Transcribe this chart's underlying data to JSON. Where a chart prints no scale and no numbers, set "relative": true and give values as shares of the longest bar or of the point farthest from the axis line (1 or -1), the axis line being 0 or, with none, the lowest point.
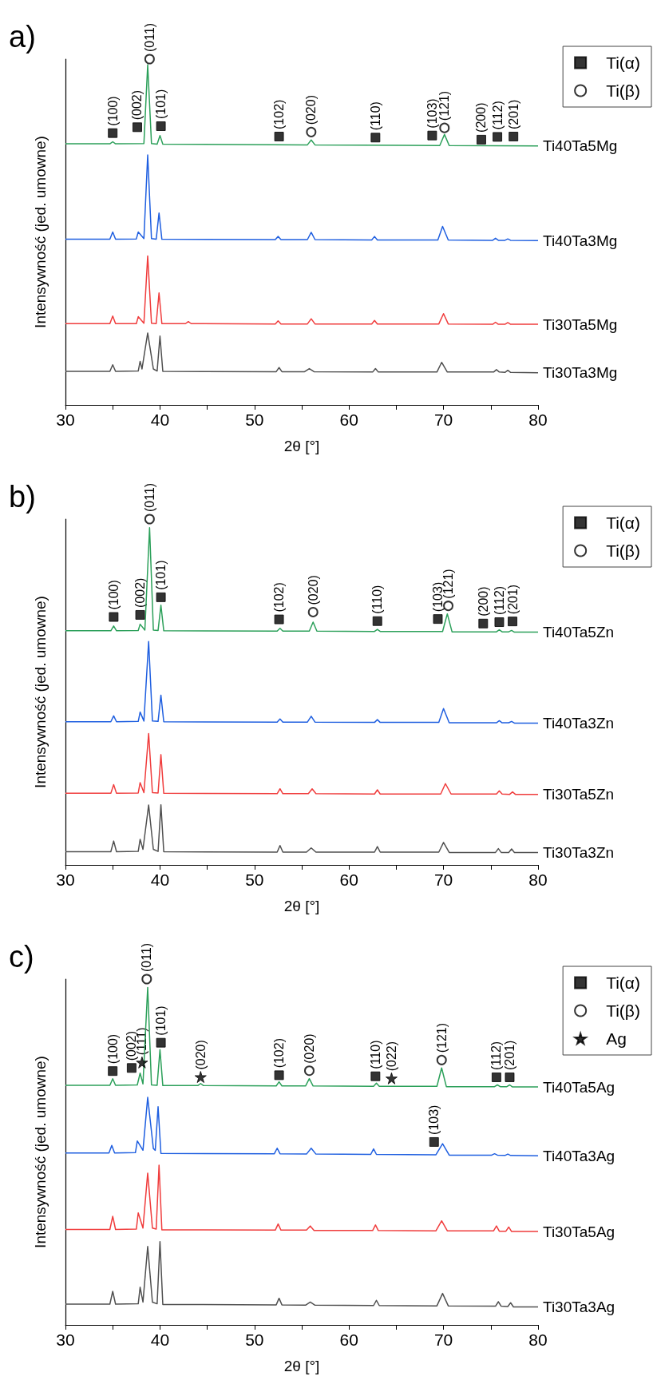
{
  "chart_data": [
    {
      "type": "line",
      "title": "a)",
      "xlabel": "2θ [°]",
      "ylabel": "Intensywność (jed. umowne)",
      "relative": true,
      "legend": "top right",
      "xlim": [
        30,
        80
      ],
      "xticks": [
        30,
        {
          "value": 35,
          "label": null
        },
        40,
        {
          "value": 45,
          "label": null
        },
        50,
        {
          "value": 55,
          "label": null
        },
        60,
        {
          "value": 65,
          "label": null
        },
        70,
        {
          "value": 75,
          "label": null
        },
        80
      ],
      "series": [
        {
          "name": "Ti40Ta5Mg",
          "color": "#2ca05a",
          "x": [
            30,
            34.7,
            35.0,
            35.3,
            38.3,
            38.7,
            39.1,
            39.7,
            40.0,
            40.3,
            55.6,
            56.0,
            56.4,
            69.6,
            70.1,
            70.6,
            80
          ],
          "values": [
            0.755,
            0.755,
            0.761,
            0.755,
            0.756,
            0.984,
            0.756,
            0.754,
            0.779,
            0.754,
            0.752,
            0.766,
            0.752,
            0.75,
            0.782,
            0.75,
            0.749
          ]
        },
        {
          "name": "Ti40Ta3Mg",
          "color": "#1f5fe0",
          "x": [
            30,
            34.7,
            35.0,
            35.3,
            37.5,
            37.7,
            38.3,
            38.7,
            39.1,
            39.6,
            39.9,
            40.2,
            52.2,
            52.5,
            52.8,
            55.6,
            56.0,
            56.4,
            62.4,
            62.7,
            63.0,
            69.4,
            69.9,
            70.5,
            75.2,
            75.5,
            75.8,
            76.5,
            76.8,
            77.1,
            80
          ],
          "values": [
            0.479,
            0.479,
            0.5,
            0.479,
            0.48,
            0.5,
            0.481,
            0.723,
            0.481,
            0.479,
            0.555,
            0.479,
            0.478,
            0.487,
            0.478,
            0.478,
            0.499,
            0.478,
            0.477,
            0.487,
            0.477,
            0.477,
            0.516,
            0.477,
            0.476,
            0.482,
            0.476,
            0.476,
            0.48,
            0.476,
            0.475
          ]
        },
        {
          "name": "Ti30Ta5Mg",
          "color": "#f03c3c",
          "x": [
            30,
            34.7,
            35.0,
            35.3,
            37.5,
            37.7,
            38.3,
            38.7,
            39.1,
            39.6,
            39.9,
            40.2,
            42.7,
            43.0,
            43.3,
            52.2,
            52.5,
            52.8,
            55.6,
            56.0,
            56.4,
            62.4,
            62.7,
            63.0,
            69.5,
            70.0,
            70.5,
            75.2,
            75.5,
            75.8,
            76.5,
            76.8,
            77.1,
            80
          ],
          "values": [
            0.235,
            0.235,
            0.257,
            0.235,
            0.235,
            0.255,
            0.236,
            0.431,
            0.236,
            0.235,
            0.324,
            0.235,
            0.235,
            0.241,
            0.235,
            0.234,
            0.243,
            0.234,
            0.234,
            0.249,
            0.234,
            0.234,
            0.244,
            0.234,
            0.234,
            0.264,
            0.234,
            0.233,
            0.239,
            0.233,
            0.233,
            0.238,
            0.233,
            0.233
          ]
        },
        {
          "name": "Ti30Ta3Mg",
          "color": "#505050",
          "x": [
            30,
            34.7,
            35.0,
            35.3,
            37.7,
            37.9,
            38.1,
            38.7,
            39.3,
            39.7,
            40.0,
            40.3,
            52.3,
            52.6,
            52.9,
            55.3,
            55.8,
            56.3,
            62.5,
            62.8,
            63.1,
            69.3,
            69.8,
            70.4,
            75.3,
            75.6,
            75.9,
            76.5,
            76.8,
            77.1,
            80
          ],
          "values": [
            0.097,
            0.097,
            0.116,
            0.097,
            0.098,
            0.126,
            0.104,
            0.208,
            0.104,
            0.098,
            0.199,
            0.097,
            0.096,
            0.108,
            0.096,
            0.096,
            0.105,
            0.096,
            0.095,
            0.105,
            0.095,
            0.095,
            0.123,
            0.095,
            0.095,
            0.102,
            0.095,
            0.094,
            0.1,
            0.094,
            0.093
          ]
        },
        {
          "name": "Ti(α)",
          "type": "scatter",
          "marker": "square",
          "color": "#000000",
          "x": [
            35.0,
            37.6,
            40.1,
            52.6,
            62.8,
            68.8,
            74.0,
            75.7,
            77.4
          ],
          "values": [
            0.786,
            0.803,
            0.806,
            0.776,
            0.773,
            0.779,
            0.767,
            0.775,
            0.776
          ]
        },
        {
          "name": "Ti(β)",
          "type": "scatter",
          "marker": "circle",
          "color": "#000000",
          "x": [
            38.9,
            56.0,
            70.1
          ],
          "values": [
            1.0,
            0.789,
            0.801
          ]
        }
      ],
      "annotations": [
        {
          "text": "(100)",
          "x": 35.0,
          "y": 0.786
        },
        {
          "text": "(002)",
          "x": 37.6,
          "y": 0.803
        },
        {
          "text": "(101)",
          "x": 40.1,
          "y": 0.806
        },
        {
          "text": "(011)",
          "x": 38.9,
          "y": 1.0
        },
        {
          "text": "(102)",
          "x": 52.6,
          "y": 0.776
        },
        {
          "text": "(020)",
          "x": 56.0,
          "y": 0.789
        },
        {
          "text": "(110)",
          "x": 62.8,
          "y": 0.773
        },
        {
          "text": "(103)",
          "x": 68.8,
          "y": 0.779
        },
        {
          "text": "(121)",
          "x": 70.1,
          "y": 0.801
        },
        {
          "text": "(200)",
          "x": 74.0,
          "y": 0.767
        },
        {
          "text": "(112)",
          "x": 75.7,
          "y": 0.775
        },
        {
          "text": "(201)",
          "x": 77.4,
          "y": 0.776
        }
      ]
    },
    {
      "type": "line",
      "title": "b)",
      "xlabel": "2θ [°]",
      "ylabel": "Intensywność (jed. umowne)",
      "relative": true,
      "legend": "top right",
      "xlim": [
        30,
        80
      ],
      "xticks": [
        30,
        {
          "value": 35,
          "label": null
        },
        40,
        {
          "value": 45,
          "label": null
        },
        50,
        {
          "value": 55,
          "label": null
        },
        60,
        {
          "value": 65,
          "label": null
        },
        70,
        {
          "value": 75,
          "label": null
        },
        80
      ],
      "series": [
        {
          "name": "Ti40Ta5Zn",
          "color": "#2ca05a",
          "x": [
            30,
            34.8,
            35.1,
            35.4,
            37.7,
            37.9,
            38.4,
            38.9,
            39.3,
            39.8,
            40.1,
            40.4,
            52.4,
            52.7,
            53.0,
            55.8,
            56.2,
            56.6,
            62.7,
            63.0,
            63.3,
            69.9,
            70.4,
            70.9,
            75.6,
            75.9,
            76.2,
            76.9,
            77.2,
            77.5,
            80
          ],
          "values": [
            0.677,
            0.677,
            0.691,
            0.677,
            0.678,
            0.696,
            0.679,
            0.975,
            0.679,
            0.678,
            0.751,
            0.677,
            0.676,
            0.684,
            0.676,
            0.676,
            0.702,
            0.676,
            0.675,
            0.681,
            0.675,
            0.675,
            0.726,
            0.674,
            0.674,
            0.68,
            0.674,
            0.674,
            0.678,
            0.673,
            0.673
          ]
        },
        {
          "name": "Ti40Ta3Zn",
          "color": "#1f5fe0",
          "x": [
            30,
            34.8,
            35.1,
            35.4,
            37.7,
            37.9,
            38.3,
            38.8,
            39.2,
            39.8,
            40.1,
            40.4,
            52.4,
            52.7,
            53.0,
            55.6,
            56.0,
            56.4,
            62.7,
            63.0,
            63.3,
            69.5,
            70.0,
            70.6,
            75.6,
            75.9,
            76.2,
            76.9,
            77.2,
            77.5,
            80
          ],
          "values": [
            0.414,
            0.414,
            0.431,
            0.414,
            0.415,
            0.442,
            0.416,
            0.646,
            0.416,
            0.415,
            0.491,
            0.414,
            0.413,
            0.422,
            0.413,
            0.413,
            0.43,
            0.413,
            0.412,
            0.42,
            0.412,
            0.412,
            0.452,
            0.411,
            0.411,
            0.417,
            0.411,
            0.411,
            0.415,
            0.41,
            0.41
          ]
        },
        {
          "name": "Ti30Ta5Zn",
          "color": "#f03c3c",
          "x": [
            30,
            34.8,
            35.1,
            35.4,
            37.7,
            37.9,
            38.3,
            38.8,
            39.2,
            39.8,
            40.1,
            40.4,
            52.4,
            52.7,
            53.0,
            55.7,
            56.1,
            56.5,
            62.7,
            63.0,
            63.3,
            69.7,
            70.2,
            70.8,
            75.6,
            75.9,
            76.2,
            77.0,
            77.3,
            77.6,
            80
          ],
          "values": [
            0.207,
            0.207,
            0.232,
            0.207,
            0.208,
            0.238,
            0.209,
            0.38,
            0.209,
            0.208,
            0.319,
            0.207,
            0.206,
            0.22,
            0.206,
            0.206,
            0.22,
            0.206,
            0.205,
            0.217,
            0.205,
            0.205,
            0.235,
            0.205,
            0.205,
            0.214,
            0.205,
            0.204,
            0.211,
            0.204,
            0.204
          ]
        },
        {
          "name": "Ti30Ta3Zn",
          "color": "#505050",
          "x": [
            30,
            34.8,
            35.1,
            35.4,
            37.7,
            37.9,
            38.2,
            38.8,
            39.3,
            39.8,
            40.1,
            40.4,
            52.4,
            52.7,
            53.0,
            55.5,
            56.0,
            56.5,
            62.7,
            63.0,
            63.3,
            69.5,
            70.0,
            70.6,
            75.5,
            75.8,
            76.1,
            76.9,
            77.2,
            77.5,
            80
          ],
          "values": [
            0.038,
            0.038,
            0.069,
            0.038,
            0.039,
            0.074,
            0.045,
            0.173,
            0.045,
            0.039,
            0.174,
            0.038,
            0.037,
            0.056,
            0.037,
            0.037,
            0.049,
            0.037,
            0.037,
            0.053,
            0.037,
            0.037,
            0.065,
            0.036,
            0.036,
            0.047,
            0.036,
            0.036,
            0.046,
            0.036,
            0.036
          ]
        },
        {
          "name": "Ti(α)",
          "type": "scatter",
          "marker": "square",
          "color": "#000000",
          "x": [
            35.1,
            37.9,
            40.1,
            52.6,
            63.0,
            69.4,
            74.2,
            75.9,
            77.3
          ],
          "values": [
            0.717,
            0.723,
            0.774,
            0.71,
            0.705,
            0.711,
            0.698,
            0.702,
            0.704
          ]
        },
        {
          "name": "Ti(β)",
          "type": "scatter",
          "marker": "circle",
          "color": "#000000",
          "x": [
            38.9,
            56.2,
            70.5
          ],
          "values": [
            1.0,
            0.731,
            0.749
          ]
        }
      ],
      "annotations": [
        {
          "text": "(100)",
          "x": 35.1,
          "y": 0.717
        },
        {
          "text": "(002)",
          "x": 37.9,
          "y": 0.723
        },
        {
          "text": "(101)",
          "x": 40.1,
          "y": 0.774
        },
        {
          "text": "(011)",
          "x": 38.9,
          "y": 1.0
        },
        {
          "text": "(102)",
          "x": 52.6,
          "y": 0.71
        },
        {
          "text": "(020)",
          "x": 56.2,
          "y": 0.731
        },
        {
          "text": "(110)",
          "x": 63.0,
          "y": 0.705
        },
        {
          "text": "(103)",
          "x": 69.4,
          "y": 0.711
        },
        {
          "text": "(121)",
          "x": 70.5,
          "y": 0.749
        },
        {
          "text": "(200)",
          "x": 74.2,
          "y": 0.698
        },
        {
          "text": "(112)",
          "x": 75.9,
          "y": 0.702
        },
        {
          "text": "(201)",
          "x": 77.3,
          "y": 0.704
        }
      ]
    },
    {
      "type": "line",
      "title": "c)",
      "xlabel": "2θ [°]",
      "ylabel": "Intensywność (jed. umowne)",
      "relative": true,
      "legend": "top right",
      "xlim": [
        30,
        80
      ],
      "xticks": [
        30,
        {
          "value": 35,
          "label": null
        },
        40,
        {
          "value": 45,
          "label": null
        },
        50,
        {
          "value": 55,
          "label": null
        },
        60,
        {
          "value": 65,
          "label": null
        },
        70,
        {
          "value": 75,
          "label": null
        },
        80
      ],
      "series": [
        {
          "name": "Ti40Ta5Ag",
          "color": "#2ca05a",
          "x": [
            30,
            34.7,
            35.0,
            35.3,
            37.6,
            37.9,
            38.2,
            38.7,
            39.1,
            39.7,
            40.0,
            40.3,
            44.0,
            44.3,
            44.6,
            52.3,
            52.6,
            52.9,
            55.4,
            55.8,
            56.2,
            62.6,
            62.9,
            63.2,
            69.3,
            69.8,
            70.3,
            75.4,
            75.7,
            76.0,
            76.7,
            77.0,
            77.3,
            80
          ],
          "values": [
            0.693,
            0.693,
            0.712,
            0.693,
            0.694,
            0.728,
            0.697,
            0.976,
            0.694,
            0.693,
            0.796,
            0.692,
            0.692,
            0.698,
            0.692,
            0.691,
            0.703,
            0.691,
            0.691,
            0.712,
            0.691,
            0.69,
            0.699,
            0.69,
            0.69,
            0.743,
            0.689,
            0.689,
            0.694,
            0.689,
            0.689,
            0.694,
            0.688,
            0.688
          ]
        },
        {
          "name": "Ti40Ta3Ag",
          "color": "#1f5fe0",
          "x": [
            30,
            34.6,
            34.9,
            35.2,
            37.4,
            37.6,
            38.2,
            38.7,
            39.3,
            39.5,
            39.8,
            40.1,
            52.1,
            52.4,
            52.7,
            55.5,
            56.0,
            56.5,
            62.3,
            62.6,
            62.9,
            69.2,
            69.9,
            70.6,
            75.1,
            75.4,
            75.7,
            76.5,
            76.8,
            77.1,
            80
          ],
          "values": [
            0.497,
            0.497,
            0.519,
            0.497,
            0.498,
            0.532,
            0.505,
            0.658,
            0.51,
            0.505,
            0.631,
            0.496,
            0.495,
            0.511,
            0.495,
            0.494,
            0.511,
            0.494,
            0.493,
            0.509,
            0.493,
            0.492,
            0.524,
            0.491,
            0.491,
            0.495,
            0.491,
            0.49,
            0.494,
            0.49,
            0.489
          ]
        },
        {
          "name": "Ti30Ta5Ag",
          "color": "#f03c3c",
          "x": [
            30,
            34.7,
            35.0,
            35.3,
            37.5,
            37.7,
            38.2,
            38.7,
            39.2,
            39.6,
            39.9,
            40.2,
            52.2,
            52.5,
            52.8,
            55.5,
            55.9,
            56.3,
            62.5,
            62.8,
            63.1,
            69.2,
            69.8,
            70.4,
            75.3,
            75.6,
            75.9,
            76.6,
            76.9,
            77.2,
            80
          ],
          "values": [
            0.276,
            0.276,
            0.314,
            0.276,
            0.277,
            0.324,
            0.28,
            0.439,
            0.28,
            0.277,
            0.462,
            0.275,
            0.274,
            0.292,
            0.274,
            0.274,
            0.286,
            0.273,
            0.273,
            0.289,
            0.273,
            0.272,
            0.301,
            0.272,
            0.272,
            0.286,
            0.271,
            0.271,
            0.283,
            0.27,
            0.27
          ]
        },
        {
          "name": "Ti30Ta3Ag",
          "color": "#505050",
          "x": [
            30,
            34.7,
            35.0,
            35.3,
            37.7,
            37.9,
            38.2,
            38.7,
            39.2,
            39.7,
            40.0,
            40.3,
            52.3,
            52.6,
            52.9,
            55.4,
            55.9,
            56.4,
            62.6,
            62.9,
            63.2,
            69.3,
            69.9,
            70.5,
            75.5,
            75.8,
            76.1,
            76.8,
            77.1,
            77.4,
            80
          ],
          "values": [
            0.06,
            0.06,
            0.097,
            0.06,
            0.061,
            0.109,
            0.066,
            0.227,
            0.066,
            0.061,
            0.241,
            0.059,
            0.058,
            0.077,
            0.058,
            0.057,
            0.066,
            0.057,
            0.056,
            0.071,
            0.056,
            0.055,
            0.091,
            0.055,
            0.054,
            0.067,
            0.054,
            0.053,
            0.064,
            0.052,
            0.052
          ]
        },
        {
          "name": "Ti(α)",
          "type": "scatter",
          "marker": "square",
          "color": "#000000",
          "x": [
            35.0,
            37.0,
            40.1,
            52.6,
            62.8,
            69.0,
            75.6,
            77.0
          ],
          "values": [
            0.734,
            0.743,
            0.816,
            0.722,
            0.719,
            0.529,
            0.716,
            0.716
          ]
        },
        {
          "name": "Ti(β)",
          "type": "scatter",
          "marker": "circle",
          "color": "#000000",
          "x": [
            38.6,
            55.8,
            69.8
          ],
          "values": [
            1.0,
            0.735,
            0.766
          ]
        },
        {
          "name": "Ag",
          "type": "scatter",
          "marker": "star",
          "color": "#000000",
          "x": [
            38.1,
            44.3,
            64.5
          ],
          "values": [
            0.759,
            0.717,
            0.713
          ]
        }
      ],
      "annotations": [
        {
          "text": "(100)",
          "x": 35.0,
          "y": 0.734
        },
        {
          "text": "(002)",
          "x": 37.0,
          "y": 0.743
        },
        {
          "text": "(111)",
          "x": 38.1,
          "y": 0.759
        },
        {
          "text": "(011)",
          "x": 38.6,
          "y": 1.0
        },
        {
          "text": "(101)",
          "x": 40.1,
          "y": 0.816
        },
        {
          "text": "(020)",
          "x": 44.3,
          "y": 0.717
        },
        {
          "text": "(102)",
          "x": 52.6,
          "y": 0.722
        },
        {
          "text": "(020)",
          "x": 55.8,
          "y": 0.735
        },
        {
          "text": "(110)",
          "x": 62.8,
          "y": 0.719
        },
        {
          "text": "(022)",
          "x": 64.5,
          "y": 0.713
        },
        {
          "text": "(121)",
          "x": 69.8,
          "y": 0.766
        },
        {
          "text": "(112)",
          "x": 75.6,
          "y": 0.716
        },
        {
          "text": "(201)",
          "x": 77.0,
          "y": 0.716
        },
        {
          "text": "(103)",
          "x": 69.0,
          "y": 0.529
        }
      ]
    }
  ]
}
